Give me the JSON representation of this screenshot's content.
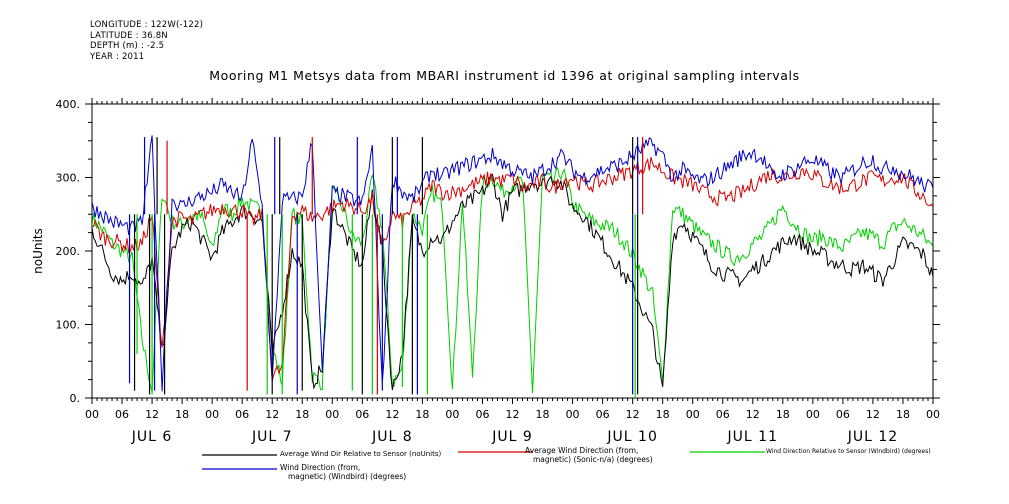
{
  "header": {
    "longitude": "LONGITUDE : 122W(-122)",
    "latitude": "LATITUDE : 36.8N",
    "depth": "DEPTH (m) : -2.5",
    "year": "YEAR : 2011"
  },
  "chart_data": {
    "type": "line",
    "title": "Mooring M1 Metsys data from MBARI instrument id 1396 at original sampling intervals",
    "ylabel": "noUnits",
    "xlabel": "",
    "ylim": [
      0,
      400
    ],
    "yticks": [
      0,
      100,
      200,
      300,
      400
    ],
    "ytick_labels": [
      "0.",
      "100.",
      "200.",
      "300.",
      "400."
    ],
    "xlim_hours": [
      0,
      168
    ],
    "hour_ticks": [
      "00",
      "06",
      "12",
      "18",
      "00",
      "06",
      "12",
      "18",
      "00",
      "06",
      "12",
      "18",
      "00",
      "06",
      "12",
      "18",
      "00",
      "06",
      "12",
      "18",
      "00",
      "06",
      "12",
      "18",
      "00",
      "06",
      "12",
      "18",
      "00"
    ],
    "day_labels": [
      "JUL  6",
      "JUL  7",
      "JUL  8",
      "JUL  9",
      "JUL 10",
      "JUL 11",
      "JUL 12"
    ],
    "grid": false,
    "legend_position": "bottom",
    "series": [
      {
        "name": "Average Wind Dir Relative to Sensor (noUnits)",
        "color": "#000000",
        "x": [
          0,
          2,
          4,
          6,
          8,
          10,
          12,
          14,
          16,
          18,
          20,
          22,
          24,
          26,
          28,
          30,
          32,
          34,
          36,
          38,
          40,
          42,
          44,
          46,
          48,
          50,
          52,
          54,
          56,
          58,
          60,
          62,
          64,
          66,
          68,
          70,
          72,
          74,
          76,
          78,
          80,
          82,
          84,
          86,
          88,
          90,
          92,
          94,
          96,
          98,
          100,
          102,
          104,
          106,
          108,
          110,
          112,
          114,
          116,
          118,
          120,
          122,
          124,
          126,
          128,
          130,
          132,
          134,
          136,
          138,
          140,
          142,
          144,
          146,
          148,
          150,
          152,
          154,
          156,
          158,
          160,
          162,
          164,
          166,
          168
        ],
        "y": [
          230,
          200,
          170,
          160,
          170,
          150,
          190,
          60,
          200,
          230,
          240,
          215,
          190,
          225,
          240,
          255,
          250,
          240,
          60,
          120,
          200,
          180,
          20,
          40,
          260,
          230,
          200,
          180,
          280,
          200,
          10,
          60,
          240,
          200,
          220,
          215,
          240,
          260,
          270,
          280,
          300,
          250,
          280,
          285,
          295,
          290,
          300,
          290,
          260,
          250,
          230,
          210,
          190,
          170,
          150,
          120,
          90,
          10,
          220,
          240,
          220,
          200,
          180,
          170,
          165,
          160,
          175,
          185,
          200,
          210,
          220,
          210,
          200,
          195,
          185,
          180,
          175,
          180,
          170,
          160,
          185,
          210,
          205,
          195,
          165
        ]
      },
      {
        "name": "Average Wind Direction (from, magnetic) (Sonic-n/a) (degrees)",
        "color": "#d40000",
        "x": [
          0,
          2,
          4,
          6,
          8,
          10,
          12,
          14,
          16,
          18,
          20,
          22,
          24,
          26,
          28,
          30,
          32,
          34,
          36,
          38,
          40,
          42,
          44,
          46,
          48,
          50,
          52,
          54,
          56,
          58,
          60,
          62,
          64,
          66,
          68,
          70,
          72,
          74,
          76,
          78,
          80,
          82,
          84,
          86,
          88,
          90,
          92,
          94,
          96,
          98,
          100,
          102,
          104,
          106,
          108,
          110,
          112,
          114,
          116,
          118,
          120,
          122,
          124,
          126,
          128,
          130,
          132,
          134,
          136,
          138,
          140,
          142,
          144,
          146,
          148,
          150,
          152,
          154,
          156,
          158,
          160,
          162,
          164,
          166,
          168
        ],
        "y": [
          240,
          220,
          215,
          210,
          205,
          210,
          250,
          60,
          240,
          245,
          240,
          250,
          255,
          260,
          255,
          255,
          240,
          250,
          30,
          40,
          250,
          255,
          245,
          250,
          260,
          265,
          260,
          255,
          270,
          200,
          250,
          240,
          260,
          270,
          290,
          280,
          280,
          285,
          290,
          295,
          300,
          295,
          300,
          285,
          290,
          295,
          285,
          295,
          300,
          290,
          290,
          295,
          300,
          305,
          310,
          315,
          320,
          310,
          300,
          295,
          290,
          280,
          275,
          270,
          275,
          280,
          290,
          300,
          305,
          300,
          305,
          310,
          305,
          295,
          290,
          285,
          290,
          295,
          300,
          295,
          300,
          300,
          285,
          275,
          260
        ]
      },
      {
        "name": "Wind Direction Relative to Sensor (Windbird) (degrees)",
        "color": "#00d000",
        "x": [
          0,
          2,
          4,
          6,
          8,
          10,
          12,
          14,
          16,
          18,
          20,
          22,
          24,
          26,
          28,
          30,
          32,
          34,
          36,
          38,
          40,
          42,
          44,
          46,
          48,
          50,
          52,
          54,
          56,
          58,
          60,
          62,
          64,
          66,
          68,
          70,
          72,
          74,
          76,
          78,
          80,
          82,
          84,
          86,
          88,
          90,
          92,
          94,
          96,
          98,
          100,
          102,
          104,
          106,
          108,
          110,
          112,
          114,
          116,
          118,
          120,
          122,
          124,
          126,
          128,
          130,
          132,
          134,
          136,
          138,
          140,
          142,
          144,
          146,
          148,
          150,
          152,
          154,
          156,
          158,
          160,
          162,
          164,
          166,
          168
        ],
        "y": [
          245,
          230,
          210,
          200,
          190,
          80,
          10,
          280,
          240,
          235,
          250,
          245,
          200,
          260,
          250,
          270,
          260,
          255,
          70,
          20,
          250,
          240,
          30,
          20,
          280,
          260,
          220,
          210,
          300,
          230,
          20,
          40,
          250,
          230,
          280,
          260,
          10,
          270,
          30,
          290,
          300,
          280,
          290,
          295,
          10,
          300,
          295,
          310,
          265,
          250,
          240,
          235,
          230,
          215,
          195,
          170,
          140,
          20,
          260,
          250,
          235,
          220,
          210,
          200,
          190,
          195,
          210,
          220,
          240,
          260,
          240,
          225,
          215,
          220,
          210,
          205,
          215,
          225,
          220,
          210,
          230,
          240,
          230,
          220,
          205
        ]
      },
      {
        "name": "Wind Direction (from, magnetic) (Windbird) (degrees)",
        "color": "#0000c8",
        "x": [
          0,
          2,
          4,
          6,
          8,
          10,
          12,
          14,
          16,
          18,
          20,
          22,
          24,
          26,
          28,
          30,
          32,
          34,
          36,
          38,
          40,
          42,
          44,
          46,
          48,
          50,
          52,
          54,
          56,
          58,
          60,
          62,
          64,
          66,
          68,
          70,
          72,
          74,
          76,
          78,
          80,
          82,
          84,
          86,
          88,
          90,
          92,
          94,
          96,
          98,
          100,
          102,
          104,
          106,
          108,
          110,
          112,
          114,
          116,
          118,
          120,
          122,
          124,
          126,
          128,
          130,
          132,
          134,
          136,
          138,
          140,
          142,
          144,
          146,
          148,
          150,
          152,
          154,
          156,
          158,
          160,
          162,
          164,
          166,
          168
        ],
        "y": [
          260,
          250,
          240,
          235,
          230,
          240,
          350,
          20,
          270,
          260,
          270,
          275,
          280,
          290,
          280,
          270,
          350,
          260,
          20,
          270,
          270,
          275,
          350,
          30,
          280,
          275,
          270,
          265,
          340,
          10,
          300,
          280,
          270,
          290,
          310,
          300,
          310,
          315,
          320,
          325,
          330,
          320,
          310,
          305,
          300,
          310,
          320,
          330,
          310,
          300,
          305,
          310,
          315,
          320,
          330,
          340,
          345,
          330,
          300,
          310,
          300,
          295,
          300,
          310,
          320,
          330,
          335,
          325,
          300,
          305,
          310,
          320,
          325,
          315,
          305,
          300,
          310,
          320,
          325,
          310,
          315,
          305,
          300,
          290,
          285
        ]
      }
    ],
    "spikes": [
      {
        "series": 1,
        "hour": 8.5,
        "value": 10
      },
      {
        "series": 1,
        "hour": 11.5,
        "value": 5
      },
      {
        "series": 1,
        "hour": 13,
        "value": 355
      },
      {
        "series": 1,
        "hour": 14.5,
        "value": 5
      },
      {
        "series": 1,
        "hour": 36,
        "value": 5
      },
      {
        "series": 1,
        "hour": 37.5,
        "value": 355
      },
      {
        "series": 1,
        "hour": 42,
        "value": 10
      },
      {
        "series": 1,
        "hour": 54,
        "value": 5
      },
      {
        "series": 1,
        "hour": 60,
        "value": 355
      },
      {
        "series": 1,
        "hour": 64,
        "value": 5
      },
      {
        "series": 1,
        "hour": 66,
        "value": 355
      },
      {
        "series": 1,
        "hour": 108,
        "value": 355
      },
      {
        "series": 1,
        "hour": 109,
        "value": 5
      },
      {
        "series": 3,
        "hour": 9,
        "value": 60
      },
      {
        "series": 3,
        "hour": 12,
        "value": 5
      },
      {
        "series": 3,
        "hour": 35,
        "value": 5
      },
      {
        "series": 3,
        "hour": 38,
        "value": 5
      },
      {
        "series": 3,
        "hour": 52,
        "value": 10
      },
      {
        "series": 3,
        "hour": 56,
        "value": 5
      },
      {
        "series": 3,
        "hour": 62,
        "value": 15
      },
      {
        "series": 3,
        "hour": 67,
        "value": 5
      },
      {
        "series": 3,
        "hour": 108.5,
        "value": 0
      },
      {
        "series": 4,
        "hour": 7.5,
        "value": 20
      },
      {
        "series": 4,
        "hour": 10.5,
        "value": 355
      },
      {
        "series": 4,
        "hour": 12.5,
        "value": 10
      },
      {
        "series": 4,
        "hour": 36.5,
        "value": 355
      },
      {
        "series": 4,
        "hour": 41,
        "value": 5
      },
      {
        "series": 4,
        "hour": 53,
        "value": 355
      },
      {
        "series": 4,
        "hour": 58,
        "value": 10
      },
      {
        "series": 4,
        "hour": 61,
        "value": 355
      },
      {
        "series": 4,
        "hour": 65,
        "value": 5
      },
      {
        "series": 4,
        "hour": 108,
        "value": 5
      },
      {
        "series": 4,
        "hour": 109,
        "value": 355
      },
      {
        "series": 2,
        "hour": 15,
        "value": 350
      },
      {
        "series": 2,
        "hour": 31,
        "value": 10
      },
      {
        "series": 2,
        "hour": 44,
        "value": 355
      },
      {
        "series": 2,
        "hour": 57,
        "value": 5
      },
      {
        "series": 2,
        "hour": 110,
        "value": 355
      }
    ]
  }
}
